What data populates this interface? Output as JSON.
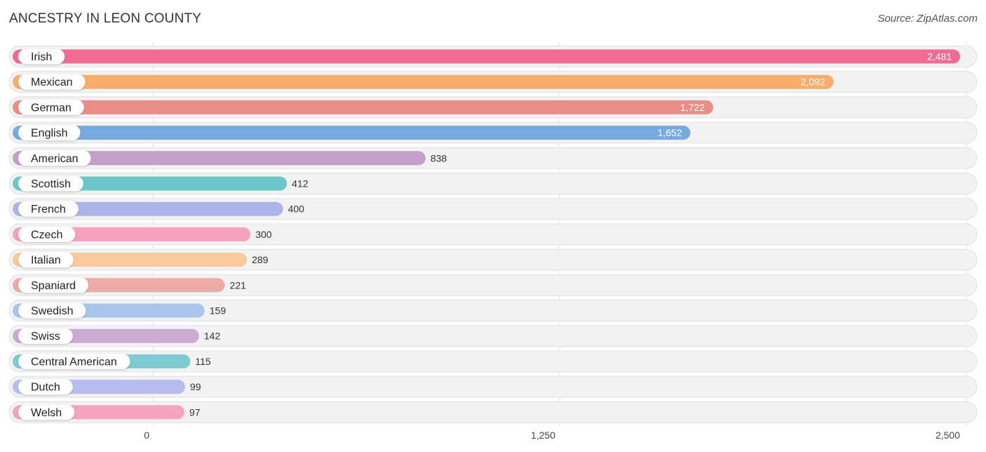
{
  "header": {
    "title": "ANCESTRY IN LEON COUNTY",
    "source": "Source: ZipAtlas.com"
  },
  "chart_data": {
    "type": "bar",
    "orientation": "horizontal",
    "title": "ANCESTRY IN LEON COUNTY",
    "xlabel": "",
    "ylabel": "",
    "xlim": [
      0,
      2500
    ],
    "grid": true,
    "categories": [
      "Irish",
      "Mexican",
      "German",
      "English",
      "American",
      "Scottish",
      "French",
      "Czech",
      "Italian",
      "Spaniard",
      "Swedish",
      "Swiss",
      "Central American",
      "Dutch",
      "Welsh"
    ],
    "values": [
      2481,
      2092,
      1722,
      1652,
      838,
      412,
      400,
      300,
      289,
      221,
      159,
      142,
      115,
      99,
      97
    ],
    "value_labels": [
      "2,481",
      "2,092",
      "1,722",
      "1,652",
      "838",
      "412",
      "400",
      "300",
      "289",
      "221",
      "159",
      "142",
      "115",
      "99",
      "97"
    ],
    "colors": [
      "#f06b94",
      "#f8ad6b",
      "#e98d86",
      "#77aae1",
      "#c4a0c8",
      "#6cc7c9",
      "#acb4ea",
      "#f6a2bd",
      "#f8ca9c",
      "#eeaaa7",
      "#a8c6ec",
      "#cbabd0",
      "#7dccd1",
      "#b6bdee",
      "#f6a4be"
    ],
    "ticks": [
      0,
      1250,
      2500
    ],
    "tick_labels": [
      "0",
      "1,250",
      "2,500"
    ]
  }
}
